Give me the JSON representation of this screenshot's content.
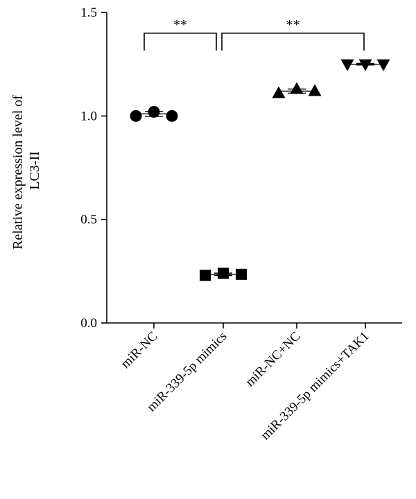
{
  "chart_data": {
    "type": "scatter",
    "ylabel_lines": [
      "Relative expression level of",
      "LC3-II"
    ],
    "xlabel": "",
    "ylim": [
      0,
      1.5
    ],
    "yticks": [
      {
        "value": 0.0,
        "label": "0.0"
      },
      {
        "value": 0.5,
        "label": "0.5"
      },
      {
        "value": 1.0,
        "label": "1.0"
      },
      {
        "value": 1.5,
        "label": "1.5"
      }
    ],
    "categories": [
      "miR-NC",
      "miR-339-5p mimics",
      "miR-NC+NC",
      "miR-339-5p mimics+TAK1"
    ],
    "series": [
      {
        "marker": "circle",
        "values": [
          1.0,
          1.02,
          1.0
        ],
        "mean": 1.01,
        "sd": 0.012
      },
      {
        "marker": "square",
        "values": [
          0.23,
          0.24,
          0.235
        ],
        "mean": 0.235,
        "sd": 0.006
      },
      {
        "marker": "triangle-up",
        "values": [
          1.11,
          1.13,
          1.12
        ],
        "mean": 1.12,
        "sd": 0.01
      },
      {
        "marker": "triangle-down",
        "values": [
          1.25,
          1.25,
          1.25
        ],
        "mean": 1.25,
        "sd": 0.004
      }
    ],
    "significance": [
      {
        "from": 0,
        "to": 1,
        "label": "**",
        "y": 1.4
      },
      {
        "from": 1,
        "to": 3,
        "label": "**",
        "y": 1.4
      }
    ]
  }
}
